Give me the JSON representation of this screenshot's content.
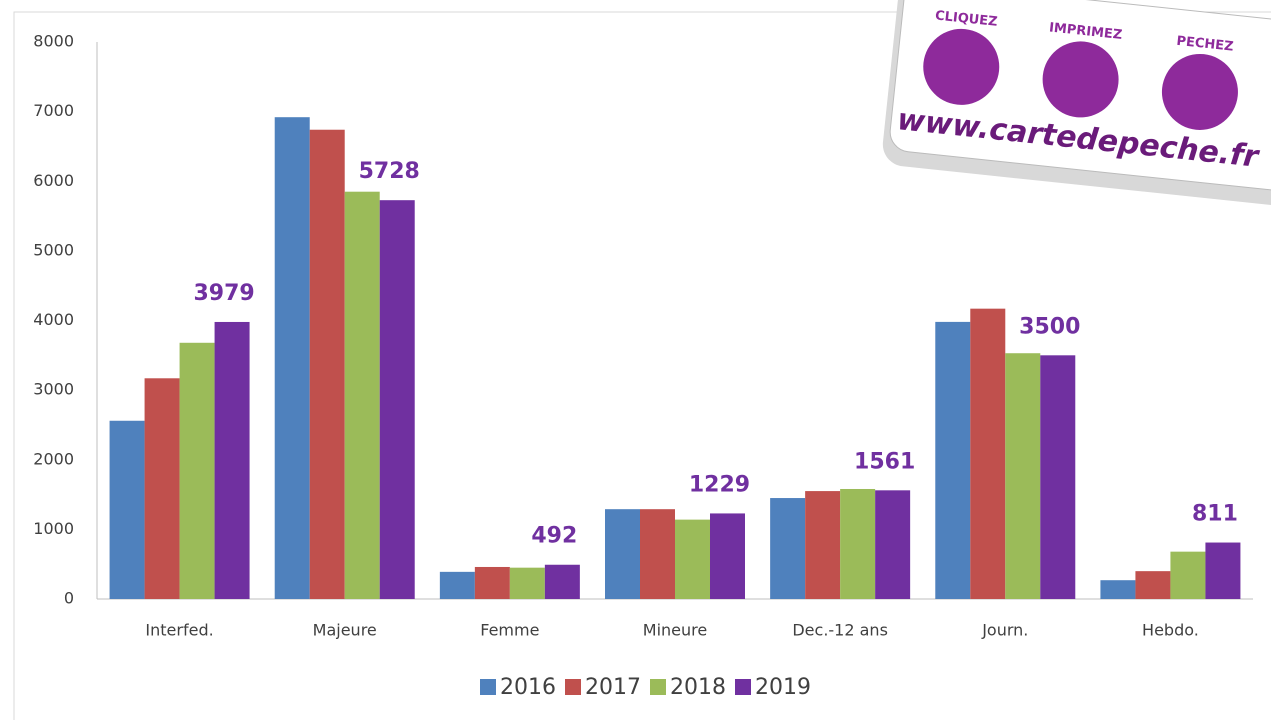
{
  "chart_data": {
    "type": "bar",
    "categories": [
      "Interfed.",
      "Majeure",
      "Femme",
      "Mineure",
      "Dec.-12 ans",
      "Journ.",
      "Hebdo."
    ],
    "series": [
      {
        "name": "2016",
        "color": "#4f81bd",
        "values": [
          2560,
          6920,
          390,
          1290,
          1450,
          3980,
          270
        ]
      },
      {
        "name": "2017",
        "color": "#c0504d",
        "values": [
          3170,
          6740,
          460,
          1290,
          1550,
          4170,
          400
        ]
      },
      {
        "name": "2018",
        "color": "#9bbb59",
        "values": [
          3680,
          5850,
          450,
          1140,
          1580,
          3530,
          680
        ]
      },
      {
        "name": "2019",
        "color": "#7030a0",
        "values": [
          3979,
          5728,
          492,
          1229,
          1561,
          3500,
          811
        ],
        "labelled": true
      }
    ],
    "ylim": [
      0,
      8000
    ],
    "yticks": [
      0,
      1000,
      2000,
      3000,
      4000,
      5000,
      6000,
      7000,
      8000
    ],
    "grid": false,
    "legend": "bottom"
  },
  "logo": {
    "words": [
      "CLIQUEZ",
      "IMPRIMEZ",
      "PECHEZ"
    ],
    "url": "www.cartedepeche.fr"
  }
}
